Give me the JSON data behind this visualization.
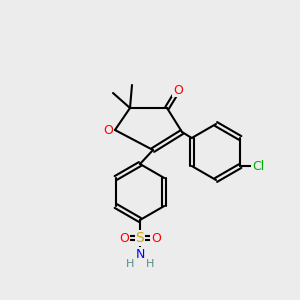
{
  "bg_color": "#ececec",
  "line_color": "#000000",
  "bond_lw": 1.5,
  "atom_colors": {
    "O": "#ff0000",
    "N": "#0000ff",
    "S": "#ccaa00",
    "Cl": "#00aa00",
    "C": "#000000",
    "H": "#5a8a8a"
  },
  "font_size": 8.5
}
